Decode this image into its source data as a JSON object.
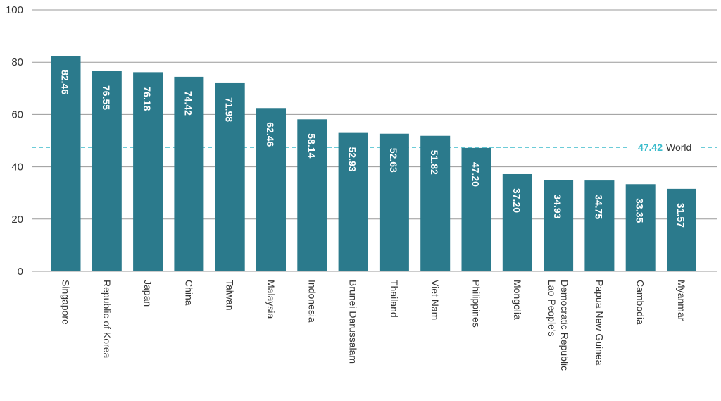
{
  "chart_data": {
    "type": "bar",
    "title": "",
    "xlabel": "",
    "ylabel": "",
    "ylim": [
      0,
      100
    ],
    "yticks": [
      0,
      20,
      40,
      60,
      80,
      100
    ],
    "grid": "horizontal",
    "legend": "none",
    "categories": [
      "Singapore",
      "Republic of Korea",
      "Japan",
      "China",
      "Taiwan",
      "Malaysia",
      "Indonesia",
      "Brunei Darussalam",
      "Thailand",
      "Viet Nam",
      "Philippines",
      "Mongolia",
      "Lao People's Democratic Republic",
      "Papua New Guinea",
      "Cambodia",
      "Myanmar"
    ],
    "category_label_lines": [
      [
        "Singapore"
      ],
      [
        "Republic of Korea"
      ],
      [
        "Japan"
      ],
      [
        "China"
      ],
      [
        "Taiwan"
      ],
      [
        "Malaysia"
      ],
      [
        "Indonesia"
      ],
      [
        "Brunei Darussalam"
      ],
      [
        "Thailand"
      ],
      [
        "Viet Nam"
      ],
      [
        "Philippines"
      ],
      [
        "Mongolia"
      ],
      [
        "Lao People's",
        "Democratic Republic"
      ],
      [
        "Papua New Guinea"
      ],
      [
        "Cambodia"
      ],
      [
        "Myanmar"
      ]
    ],
    "values": [
      82.46,
      76.55,
      76.18,
      74.42,
      71.98,
      62.46,
      58.14,
      52.93,
      52.63,
      51.82,
      47.2,
      37.2,
      34.93,
      34.75,
      33.35,
      31.57
    ],
    "value_labels": [
      "82.46",
      "76.55",
      "76.18",
      "74.42",
      "71.98",
      "62.46",
      "58.14",
      "52.93",
      "52.63",
      "51.82",
      "47.20",
      "37.20",
      "34.93",
      "34.75",
      "33.35",
      "31.57"
    ],
    "reference_line": {
      "value": 47.42,
      "value_label": "47.42",
      "name": "World"
    },
    "colors": {
      "bar": "#2b7a8c",
      "reference": "#3bbccc",
      "grid": "#9a9a9a",
      "text": "#333333",
      "bar_label": "#ffffff"
    }
  }
}
